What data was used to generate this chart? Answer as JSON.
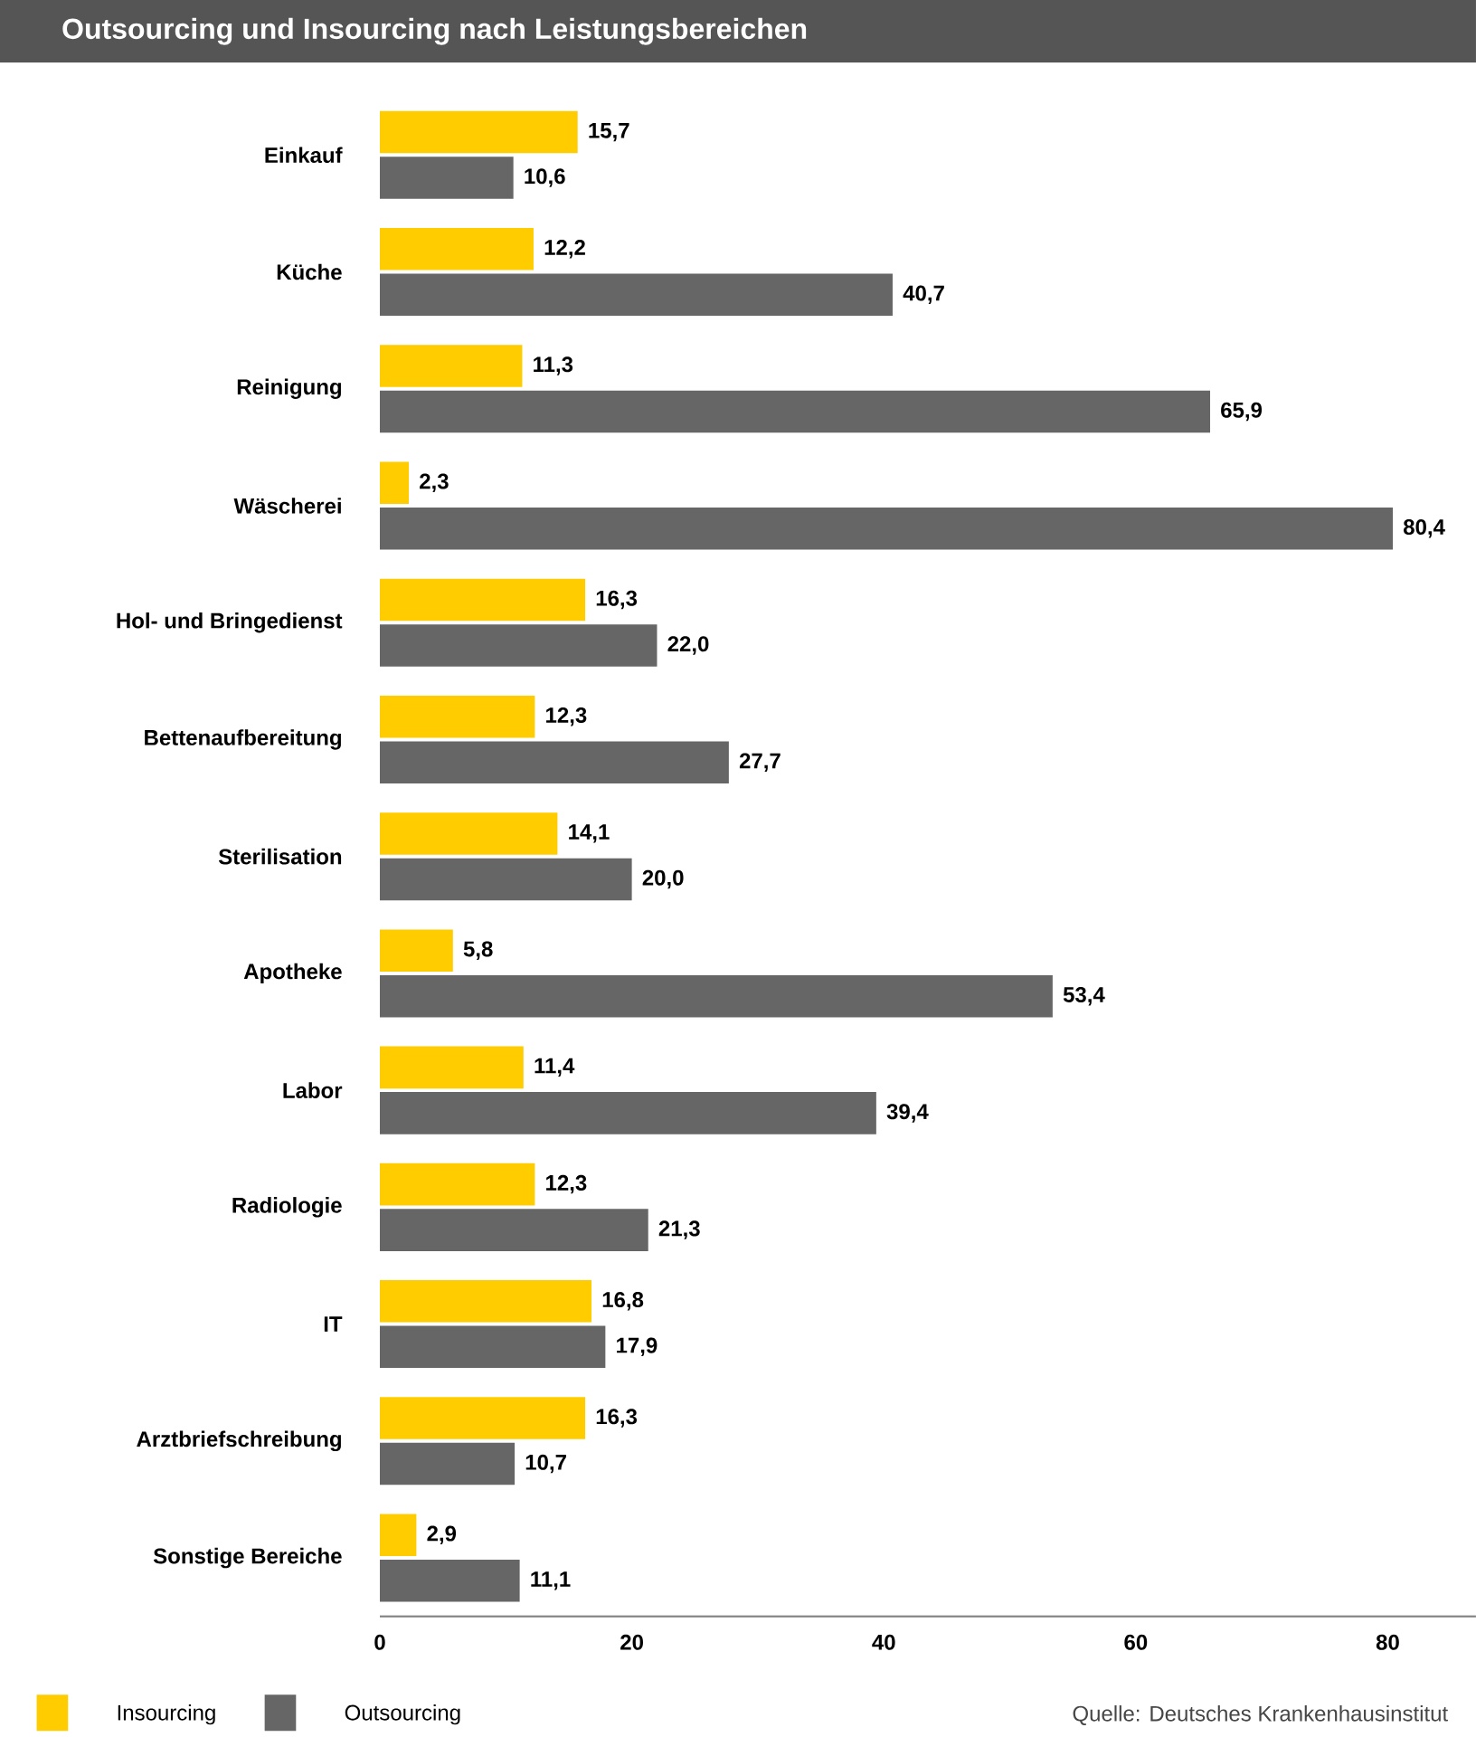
{
  "chart_data": {
    "type": "bar",
    "orientation": "horizontal",
    "title": "Outsourcing und Insourcing nach Leistungsbereichen",
    "categories": [
      "Einkauf",
      "Küche",
      "Reinigung",
      "Wäscherei",
      "Hol- und Bringedienst",
      "Bettenaufbereitung",
      "Sterilisation",
      "Apotheke",
      "Labor",
      "Radiologie",
      "IT",
      "Arztbriefschreibung",
      "Sonstige Bereiche"
    ],
    "series": [
      {
        "name": "Insourcing",
        "color": "#ffcc00",
        "values": [
          15.7,
          12.2,
          11.3,
          2.3,
          16.3,
          12.3,
          14.1,
          5.8,
          11.4,
          12.3,
          16.8,
          16.3,
          2.9
        ],
        "value_labels": [
          "15,7",
          "12,2",
          "11,3",
          "2,3",
          "16,3",
          "12,3",
          "14,1",
          "5,8",
          "11,4",
          "12,3",
          "16,8",
          "16,3",
          "2,9"
        ]
      },
      {
        "name": "Outsourcing",
        "color": "#666666",
        "values": [
          10.6,
          40.7,
          65.9,
          80.4,
          22.0,
          27.7,
          20.0,
          53.4,
          39.4,
          21.3,
          17.9,
          10.7,
          11.1
        ],
        "value_labels": [
          "10,6",
          "40,7",
          "65,9",
          "80,4",
          "22,0",
          "27,7",
          "20,0",
          "53,4",
          "39,4",
          "21,3",
          "17,9",
          "10,7",
          "11,1"
        ]
      }
    ],
    "xlim": [
      0,
      87
    ],
    "xticks": [
      0,
      20,
      40,
      60,
      80
    ],
    "legend": "bottom left",
    "annotations": [
      "Quelle: Deutsches Krankenhausinstitut"
    ]
  }
}
